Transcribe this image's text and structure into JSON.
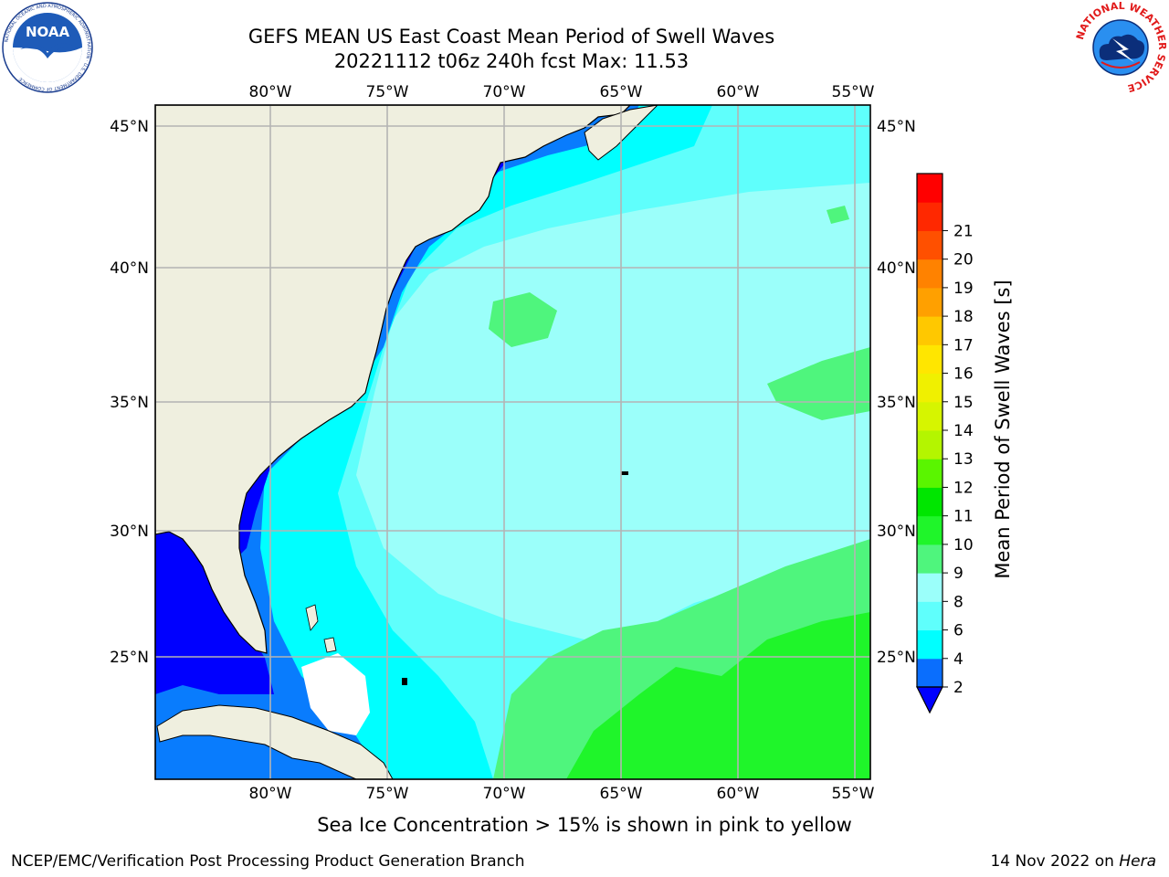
{
  "header": {
    "title_line1": "GEFS MEAN US East Coast Mean Period of Swell Waves",
    "title_line2": "20221112 t06z 240h fcst   Max: 11.53"
  },
  "logos": {
    "left": {
      "icon": "noaa-logo",
      "text": "NOAA",
      "ring_text": "NATIONAL OCEANIC AND ATMOSPHERIC ADMINISTRATION · U.S. DEPARTMENT OF COMMERCE"
    },
    "right": {
      "icon": "nws-logo",
      "ring_text": "NATIONAL WEATHER SERVICE"
    }
  },
  "map": {
    "lon_labels": [
      "80°W",
      "75°W",
      "70°W",
      "65°W",
      "60°W",
      "55°W"
    ],
    "lat_labels": [
      "45°N",
      "40°N",
      "35°N",
      "30°N",
      "25°N"
    ],
    "colors": {
      "land": "#efefdf",
      "blue": "#0000ff",
      "dodger": "#0a6efd",
      "cyan": "#00ffff",
      "lightcyan": "#5ffffc",
      "palecyan": "#9bfffa",
      "lightgreen": "#4ff57d",
      "green": "#1ff52a",
      "grid": "#b4b4b4"
    }
  },
  "colorbar": {
    "label": "Mean Period of Swell Waves [s]",
    "ticks": [
      "2",
      "4",
      "6",
      "8",
      "9",
      "10",
      "11",
      "12",
      "13",
      "14",
      "15",
      "16",
      "17",
      "18",
      "19",
      "20",
      "21"
    ],
    "colors": [
      "#0a6efd",
      "#00ffff",
      "#5ffffc",
      "#9bfffa",
      "#4ff57d",
      "#1ff52a",
      "#00e600",
      "#5af500",
      "#b4f500",
      "#d6f500",
      "#f0f000",
      "#ffe600",
      "#ffc800",
      "#ffa000",
      "#ff8200",
      "#ff5000",
      "#ff2800",
      "#ff0000"
    ],
    "extend_color": "#0000ff"
  },
  "captions": {
    "sea_ice": "Sea Ice Concentration > 15% is shown in pink to yellow"
  },
  "footer": {
    "left": "NCEP/EMC/Verification Post Processing Product Generation Branch",
    "right_date": "14 Nov 2022 on ",
    "right_host": "Hera"
  }
}
